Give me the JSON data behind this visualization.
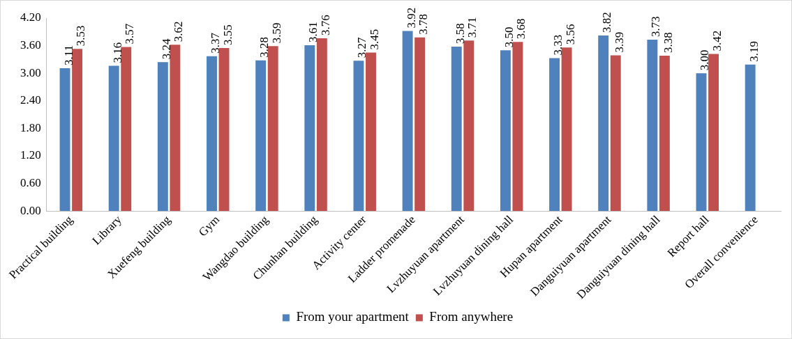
{
  "chart_data": {
    "type": "bar",
    "categories": [
      "Practical building",
      "Library",
      "Xuefeng building",
      "Gym",
      "Wangdao building",
      "Chunhan building",
      "Activity center",
      "Ladder promenade",
      "Lvzhuyuan apartment",
      "Lvzhuyuan dining hall",
      "Hupan apartment",
      "Danguiyuan apartment",
      "Danguiyuan dining hall",
      "Report hall",
      "Overall convenience"
    ],
    "series": [
      {
        "name": "From your apartment",
        "color": "#4f81bd",
        "values": [
          3.11,
          3.16,
          3.24,
          3.37,
          3.28,
          3.61,
          3.27,
          3.92,
          3.58,
          3.5,
          3.33,
          3.82,
          3.73,
          3.0,
          3.19
        ],
        "value_labels": [
          "3.11",
          "3.16",
          "3.24",
          "3.37",
          "3.28",
          "3.61",
          "3.27",
          "3.92",
          "3.58",
          "3.50",
          "3.33",
          "3.82",
          "3.73",
          "3.00",
          "3.19"
        ]
      },
      {
        "name": "From anywhere",
        "color": "#c0504d",
        "values": [
          3.53,
          3.57,
          3.62,
          3.55,
          3.59,
          3.76,
          3.45,
          3.78,
          3.71,
          3.68,
          3.56,
          3.39,
          3.38,
          3.42,
          null
        ],
        "value_labels": [
          "3.53",
          "3.57",
          "3.62",
          "3.55",
          "3.59",
          "3.76",
          "3.45",
          "3.78",
          "3.71",
          "3.68",
          "3.56",
          "3.39",
          "3.38",
          "3.42",
          null
        ]
      }
    ],
    "ylim": [
      0,
      4.2
    ],
    "yticks": [
      {
        "value": 0,
        "label": "0.00"
      },
      {
        "value": 0.6,
        "label": "0.60"
      },
      {
        "value": 1.2,
        "label": "1.20"
      },
      {
        "value": 1.8,
        "label": "1.80"
      },
      {
        "value": 2.4,
        "label": "2.40"
      },
      {
        "value": 3.0,
        "label": "3.00"
      },
      {
        "value": 3.6,
        "label": "3.60"
      },
      {
        "value": 4.2,
        "label": "4.20"
      }
    ],
    "grid": false,
    "legend": "bottom"
  }
}
